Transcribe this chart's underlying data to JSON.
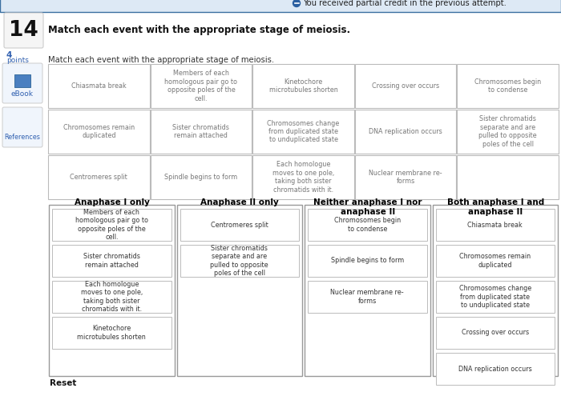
{
  "banner_text": "You received partial credit in the previous attempt.",
  "banner_bg": "#dde9f5",
  "banner_border": "#3a6fa0",
  "question_number": "14",
  "bold_instruction": "Match each event with the appropriate stage of meiosis.",
  "instruction": "Match each event with the appropriate stage of meiosis.",
  "source_items": [
    [
      "Chiasmata break",
      "Members of each\nhomologous pair go to\nopposite poles of the\ncell.",
      "Kinetochore\nmicrotubules shorten",
      "Crossing over occurs",
      "Chromosomes begin\nto condense"
    ],
    [
      "Chromosomes remain\nduplicated",
      "Sister chromatids\nremain attached",
      "Chromosomes change\nfrom duplicated state\nto unduplicated state",
      "DNA replication occurs",
      "Sister chromatids\nseparate and are\npulled to opposite\npoles of the cell"
    ],
    [
      "Centromeres split",
      "Spindle begins to form",
      "Each homologue\nmoves to one pole,\ntaking both sister\nchromatids with it.",
      "Nuclear membrane re-\nforms",
      ""
    ]
  ],
  "drop_zones": [
    {
      "title": "Anaphase I only",
      "items": [
        "Members of each\nhomologous pair go to\nopposite poles of the\ncell.",
        "Sister chromatids\nremain attached",
        "Each homologue\nmoves to one pole,\ntaking both sister\nchromatids with it.",
        "Kinetochore\nmicrotubules shorten"
      ]
    },
    {
      "title": "Anaphase II only",
      "items": [
        "Centromeres split",
        "Sister chromatids\nseparate and are\npulled to opposite\npoles of the cell"
      ]
    },
    {
      "title": "Neither anaphase I nor\nanaphase II",
      "items": [
        "Chromosomes begin\nto condense",
        "Spindle begins to form",
        "Nuclear membrane re-\nforms"
      ]
    },
    {
      "title": "Both anaphase I and\nanaphase II",
      "items": [
        "Chiasmata break",
        "Chromosomes remain\nduplicated",
        "Chromosomes change\nfrom duplicated state\nto unduplicated state",
        "Crossing over occurs",
        "DNA replication occurs"
      ]
    }
  ],
  "reset_label": "Reset",
  "bg_color": "#ffffff",
  "box_border": "#bbbbbb",
  "source_text_color": "#777777",
  "drop_text_color": "#333333",
  "title_color": "#000000",
  "outer_box_border": "#999999",
  "banner_dot_color": "#2a5fa0"
}
